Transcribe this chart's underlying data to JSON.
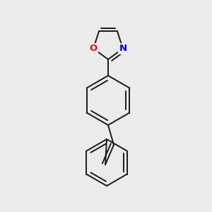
{
  "background_color": "#ebebeb",
  "bond_color": "#1a1a1a",
  "atom_O_color": "#ff0000",
  "atom_N_color": "#0000cc",
  "atom_O_label": "O",
  "atom_N_label": "N",
  "line_width": 1.4,
  "font_size": 9.5,
  "fig_width": 3.0,
  "fig_height": 3.0,
  "dpi": 100
}
